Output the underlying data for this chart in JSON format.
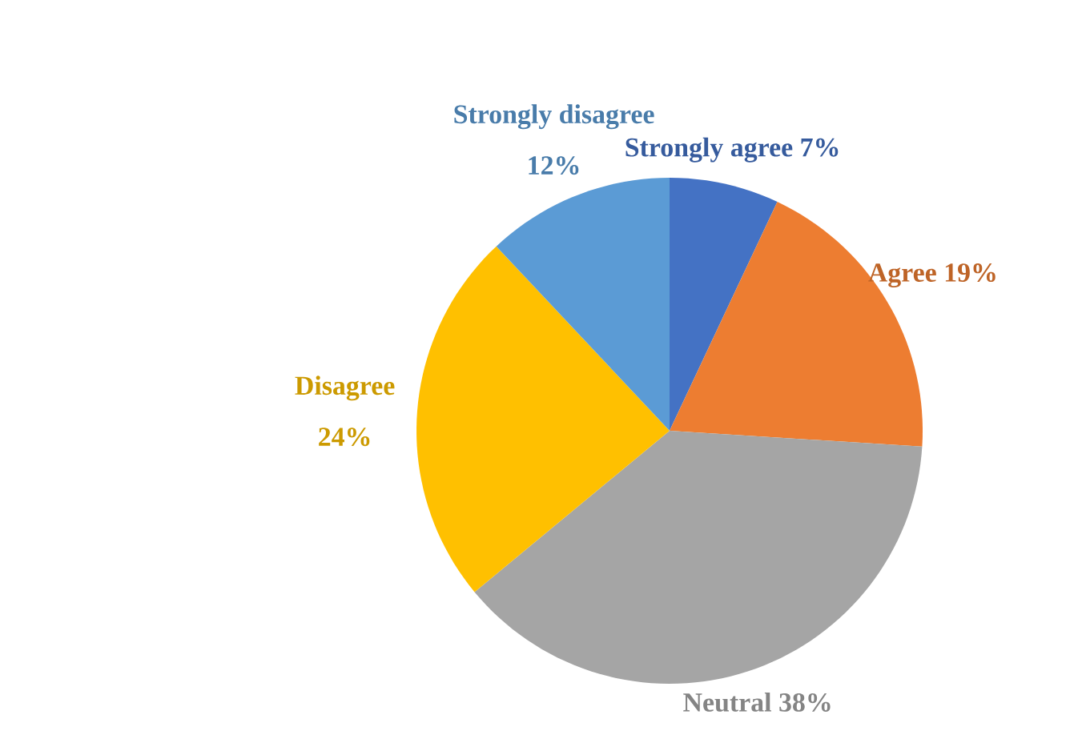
{
  "chart_data": {
    "type": "pie",
    "categories": [
      "Strongly agree",
      "Agree",
      "Neutral",
      "Disagree",
      "Strongly disagree"
    ],
    "values": [
      7,
      19,
      38,
      24,
      12
    ],
    "value_labels": [
      "7%",
      "19%",
      "38%",
      "24%",
      "12%"
    ],
    "colors": [
      "#4472c4",
      "#ed7d31",
      "#a5a5a5",
      "#ffc000",
      "#5b9bd5"
    ],
    "legend": false
  }
}
